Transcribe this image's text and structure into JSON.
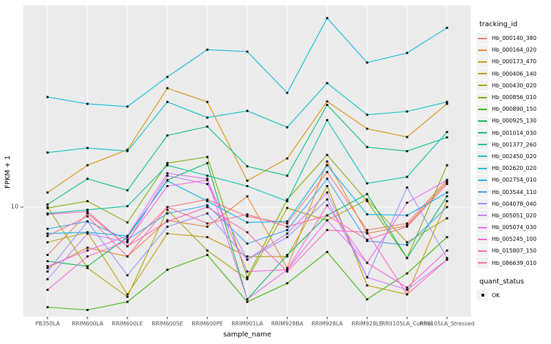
{
  "figure": {
    "y_axis": {
      "title": "FPKM + 1",
      "tick_label": "10",
      "scale": "log10"
    },
    "x_axis": {
      "title": "sample_name"
    },
    "legend": {
      "tracking_title": "tracking_id",
      "quant_title": "quant_status",
      "quant_label": "OK"
    },
    "style": {
      "panel_bg": "#EBEBEB",
      "grid": "#FFFFFF",
      "tick_mark": "#333333",
      "tick_text": "#4D4D4D",
      "point": "#000000",
      "key_bg": "#F2F2F2"
    }
  },
  "chart_data": {
    "type": "line",
    "title": "",
    "xlabel": "sample_name",
    "ylabel": "FPKM + 1",
    "y_scale": "log10",
    "y_ticks": [
      10
    ],
    "ylim_approx": [
      2.9,
      100
    ],
    "grid": "major-only",
    "legend_position": "right",
    "legend_title": "tracking_id",
    "point_marker": "black-filled-square",
    "quant_status_legend": {
      "title": "quant_status",
      "items": [
        "OK"
      ]
    },
    "categories": [
      "PB350LA",
      "RRIM600LA",
      "RRIM600LE",
      "RRIM600SE",
      "RRIM600PE",
      "RRIM901LA",
      "RRIM928BA",
      "RRIM928LA",
      "RRIM928LE",
      "RRII105LA_Control",
      "RRII105LA_Stressed"
    ],
    "series": [
      {
        "name": "Hb_000140_380",
        "color": "#F8766D",
        "values": [
          5.8,
          9.3,
          6.4,
          10.0,
          10.9,
          9.0,
          8.3,
          14.9,
          7.7,
          8.3,
          13.6
        ]
      },
      {
        "name": "Hb_000164_020",
        "color": "#EA8331",
        "values": [
          5.0,
          6.3,
          5.7,
          8.6,
          8.0,
          11.3,
          5.0,
          16.8,
          7.4,
          8.1,
          13.3
        ]
      },
      {
        "name": "Hb_000173_470",
        "color": "#D89000",
        "values": [
          11.8,
          16.1,
          19.2,
          38.7,
          33.1,
          13.5,
          17.4,
          33.3,
          24.4,
          22.2,
          32.4
        ]
      },
      {
        "name": "Hb_000406_140",
        "color": "#C09B00",
        "values": [
          6.7,
          7.5,
          3.7,
          7.4,
          7.1,
          5.7,
          5.7,
          12.7,
          4.1,
          3.7,
          10.7
        ]
      },
      {
        "name": "Hb_000430_020",
        "color": "#A3A500",
        "values": [
          10.0,
          5.0,
          3.6,
          9.7,
          6.1,
          4.4,
          9.9,
          8.6,
          10.9,
          6.7,
          8.8
        ]
      },
      {
        "name": "Hb_000856_010",
        "color": "#7CAE00",
        "values": [
          9.9,
          10.7,
          8.4,
          16.5,
          17.7,
          4.5,
          10.9,
          18.1,
          10.7,
          5.6,
          16.1
        ]
      },
      {
        "name": "Hb_000890_150",
        "color": "#39B600",
        "values": [
          3.2,
          3.1,
          3.4,
          4.9,
          5.8,
          3.4,
          4.2,
          6.0,
          3.5,
          4.7,
          7.1
        ]
      },
      {
        "name": "Hb_000925_130",
        "color": "#00BB4E",
        "values": [
          5.4,
          5.1,
          7.1,
          13.6,
          16.5,
          3.5,
          5.8,
          9.1,
          11.6,
          5.6,
          11.3
        ]
      },
      {
        "name": "Hb_001014_030",
        "color": "#00BF7D",
        "values": [
          10.3,
          13.8,
          12.1,
          22.6,
          25.0,
          15.9,
          14.3,
          32.0,
          19.8,
          18.9,
          22.1
        ]
      },
      {
        "name": "Hb_001377_260",
        "color": "#00C1A3",
        "values": [
          9.3,
          9.7,
          10.1,
          16.1,
          14.3,
          12.7,
          10.7,
          26.9,
          13.1,
          14.1,
          23.5
        ]
      },
      {
        "name": "Hb_002450_020",
        "color": "#00BFC4",
        "values": [
          18.6,
          19.6,
          18.9,
          33.1,
          27.7,
          29.9,
          24.8,
          41.0,
          28.6,
          29.7,
          33.1
        ]
      },
      {
        "name": "Hb_002620_020",
        "color": "#00BAE0",
        "values": [
          35.0,
          32.4,
          31.4,
          44.0,
          60.0,
          58.7,
          36.7,
          86.0,
          51.8,
          57.8,
          77.0
        ]
      },
      {
        "name": "Hb_002754_010",
        "color": "#00B0F6",
        "values": [
          7.4,
          7.5,
          7.2,
          13.5,
          10.7,
          8.4,
          8.5,
          16.1,
          9.2,
          9.1,
          11.8
        ]
      },
      {
        "name": "Hb_003544_110",
        "color": "#35A2FF",
        "values": [
          7.8,
          8.5,
          6.9,
          9.3,
          10.2,
          6.6,
          7.7,
          13.8,
          6.8,
          6.5,
          10.0
        ]
      },
      {
        "name": "Hb_004078_040",
        "color": "#9590FF",
        "values": [
          4.8,
          8.5,
          4.6,
          8.0,
          9.3,
          5.5,
          7.1,
          10.9,
          4.5,
          12.5,
          5.6
        ]
      },
      {
        "name": "Hb_005051_020",
        "color": "#C77CFF",
        "values": [
          4.4,
          7.4,
          6.7,
          14.3,
          13.0,
          5.5,
          7.4,
          11.8,
          4.5,
          3.9,
          5.5
        ]
      },
      {
        "name": "Hb_005074_030",
        "color": "#E76BF3",
        "values": [
          5.1,
          6.1,
          7.2,
          14.7,
          13.8,
          3.5,
          4.9,
          8.6,
          5.3,
          10.5,
          13.6
        ]
      },
      {
        "name": "Hb_005245_100",
        "color": "#FA62DB",
        "values": [
          3.9,
          5.7,
          6.8,
          12.7,
          13.6,
          4.8,
          4.9,
          10.2,
          5.3,
          4.0,
          6.1
        ]
      },
      {
        "name": "Hb_015807_150",
        "color": "#FF62BC",
        "values": [
          9.2,
          9.5,
          6.4,
          8.5,
          10.0,
          7.5,
          4.8,
          7.7,
          7.5,
          3.7,
          5.5
        ]
      },
      {
        "name": "Hb_086639_010",
        "color": "#FF6A98",
        "values": [
          7.2,
          9.0,
          5.7,
          10.0,
          8.3,
          9.2,
          8.0,
          9.1,
          6.9,
          8.0,
          13.0
        ]
      }
    ]
  }
}
